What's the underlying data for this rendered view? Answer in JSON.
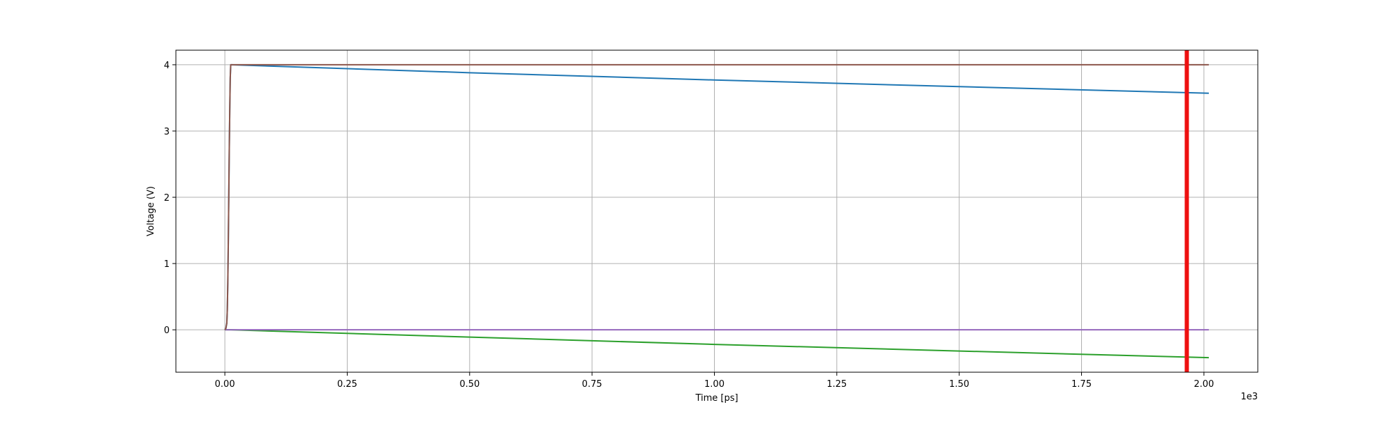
{
  "chart_data": {
    "type": "line",
    "title": "",
    "xlabel": "Time [ps]",
    "ylabel": "Voltage (V)",
    "x_offset_label": "1e3",
    "xlim": [
      -0.1,
      2.11
    ],
    "ylim": [
      -0.64,
      4.22
    ],
    "xticks": [
      0.0,
      0.25,
      0.5,
      0.75,
      1.0,
      1.25,
      1.5,
      1.75,
      2.0
    ],
    "xtick_labels": [
      "0.00",
      "0.25",
      "0.50",
      "0.75",
      "1.00",
      "1.25",
      "1.50",
      "1.75",
      "2.00"
    ],
    "yticks": [
      0,
      1,
      2,
      3,
      4
    ],
    "ytick_labels": [
      "0",
      "1",
      "2",
      "3",
      "4"
    ],
    "grid": true,
    "legend": false,
    "series": [
      {
        "color": "#1f77b4",
        "x": [
          0.0,
          0.002,
          0.004,
          0.005,
          0.006,
          0.007,
          0.008,
          0.009,
          0.01,
          0.011,
          0.012,
          0.5,
          1.0,
          1.5,
          2.01
        ],
        "y": [
          0.0,
          0.02,
          0.1,
          0.3,
          0.7,
          1.3,
          2.0,
          2.7,
          3.3,
          3.8,
          4.0,
          3.88,
          3.77,
          3.67,
          3.57
        ]
      },
      {
        "color": "#2ca02c",
        "x": [
          0.0,
          0.012,
          0.5,
          1.0,
          1.5,
          2.01
        ],
        "y": [
          0.0,
          0.0,
          -0.11,
          -0.22,
          -0.32,
          -0.42
        ]
      },
      {
        "color": "#9467bd",
        "x": [
          0.0,
          2.01
        ],
        "y": [
          0.0,
          0.0
        ]
      },
      {
        "color": "#8c564b",
        "x": [
          0.0,
          0.002,
          0.004,
          0.005,
          0.006,
          0.007,
          0.008,
          0.009,
          0.01,
          0.011,
          0.012,
          2.01
        ],
        "y": [
          0.0,
          0.02,
          0.1,
          0.3,
          0.7,
          1.3,
          2.0,
          2.7,
          3.3,
          3.8,
          4.0,
          4.0
        ]
      }
    ],
    "marker_line": {
      "x": 1.965,
      "color": "#ee1111"
    }
  }
}
